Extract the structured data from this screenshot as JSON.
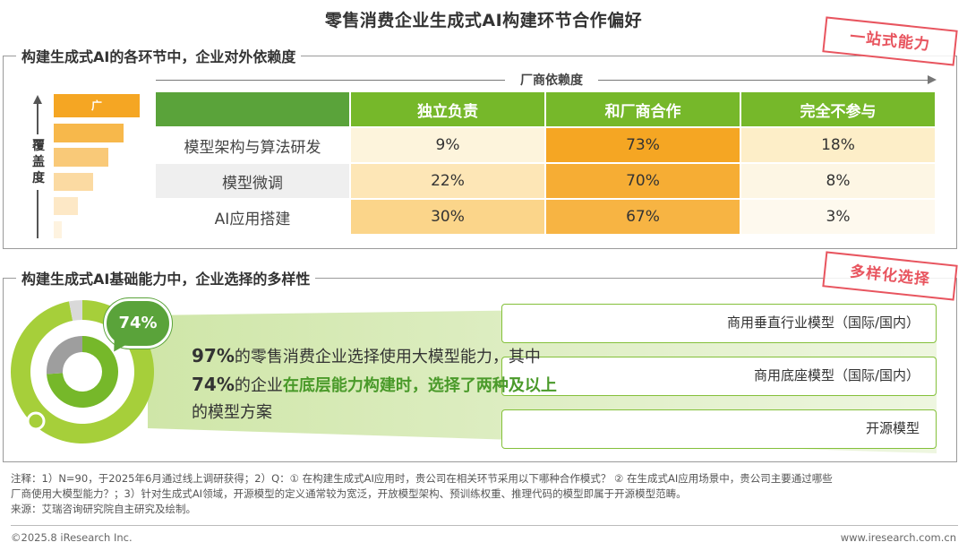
{
  "title": "零售消费企业生成式AI构建环节合作偏好",
  "stamps": {
    "top": "一站式能力",
    "bottom": "多样化选择"
  },
  "section1": {
    "title": "构建生成式AI的各环节中，企业对外依赖度",
    "vendor_arrow_label": "厂商依赖度",
    "coverage_label_chars": [
      "覆",
      "盖",
      "度"
    ],
    "coverage_scale_label": "广",
    "header_left": "",
    "columns": [
      "独立负责",
      "和厂商合作",
      "完全不参与"
    ],
    "rows": [
      {
        "label": "模型架构与算法研发",
        "values": [
          "9%",
          "73%",
          "18%"
        ]
      },
      {
        "label": "模型微调",
        "values": [
          "22%",
          "70%",
          "8%"
        ]
      },
      {
        "label": "AI应用搭建",
        "values": [
          "30%",
          "67%",
          "3%"
        ]
      }
    ]
  },
  "section2": {
    "title": "构建生成式AI基础能力中，企业选择的多样性",
    "donut_badge": "74%",
    "text_line1_pct": "97%",
    "text_line1_rest": "的零售消费企业选择使用大模型能力，其中",
    "text_line2_pct": "74%",
    "text_line2_mid": "的企业",
    "text_line2_bold": "在底层能力构建时，选择了两种及以上",
    "text_line3": "的模型方案",
    "options": [
      "商用垂直行业模型（国际/国内）",
      "商用底座模型（国际/国内）",
      "开源模型"
    ]
  },
  "chart_data": [
    {
      "type": "table",
      "title": "构建生成式AI的各环节中，企业对外依赖度",
      "columns": [
        "独立负责",
        "和厂商合作",
        "完全不参与"
      ],
      "rows": [
        "模型架构与算法研发",
        "模型微调",
        "AI应用搭建"
      ],
      "values": [
        [
          9,
          73,
          18
        ],
        [
          22,
          70,
          8
        ],
        [
          30,
          67,
          3
        ]
      ],
      "unit": "%"
    },
    {
      "type": "pie",
      "title": "构建生成式AI基础能力中，企业选择的多样性",
      "outer": {
        "used_large_model": 97
      },
      "inner": {
        "two_or_more_models": 74
      }
    }
  ],
  "footnote": {
    "line1": "注释：1）N=90，于2025年6月通过线上调研获得；2）Q：① 在构建生成式AI应用时，贵公司在相关环节采用以下哪种合作模式？ ② 在生成式AI应用场景中，贵公司主要通过哪些",
    "line2": "厂商使用大模型能力？；3）针对生成式AI领域，开源模型的定义通常较为宽泛，开放模型架构、预训练权重、推理代码的模型即属于开源模型范畴。",
    "line3": "来源：艾瑞咨询研究院自主研究及绘制。"
  },
  "copyright": "©2025.8 iResearch Inc.",
  "website": "www.iresearch.com.cn",
  "colors": {
    "green": "#76b82a",
    "green_dark": "#5aa33a",
    "orange": "#f5a623",
    "orange_light": "#fbd58a",
    "cream": "#fdf1d0",
    "grey_cell": "#efefef",
    "stamp_red": "#e8555f"
  }
}
